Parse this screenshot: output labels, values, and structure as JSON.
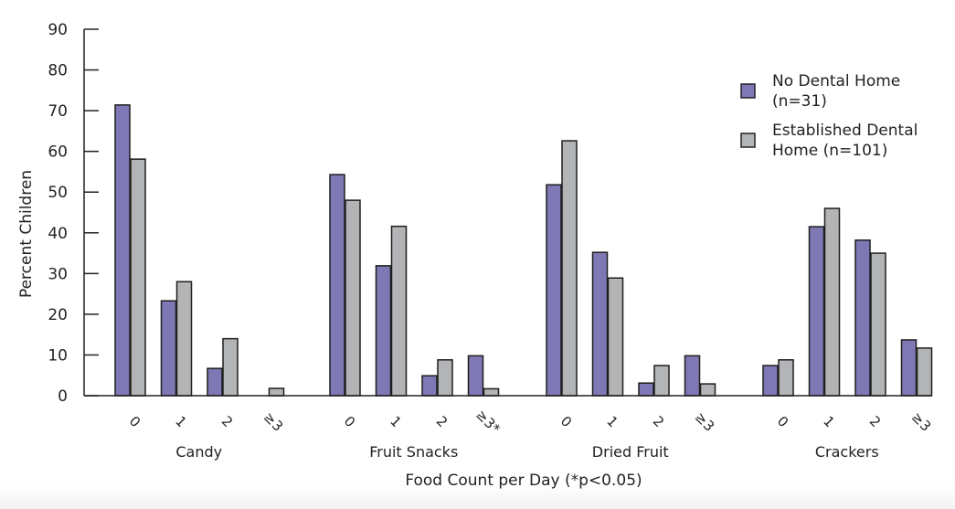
{
  "chart_data": {
    "type": "bar",
    "title": "",
    "xlabel": "Food Count per Day (*p<0.05)",
    "ylabel": "Percent Children",
    "ylim": [
      0,
      90
    ],
    "yticks": [
      "0",
      "10",
      "20",
      "30",
      "40",
      "50",
      "60",
      "70",
      "80",
      "90"
    ],
    "grid": false,
    "legend_position": "top-right",
    "groups": [
      {
        "name": "Candy",
        "categories": [
          "0",
          "1",
          "2",
          "≥3"
        ]
      },
      {
        "name": "Fruit Snacks",
        "categories": [
          "0",
          "1",
          "2",
          "≥3*"
        ]
      },
      {
        "name": "Dried Fruit",
        "categories": [
          "0",
          "1",
          "2",
          "≥3"
        ]
      },
      {
        "name": "Crackers",
        "categories": [
          "0",
          "1",
          "2",
          "≥3"
        ]
      }
    ],
    "series": [
      {
        "name": "No Dental Home (n=31)",
        "legend_lines": [
          "No Dental Home",
          "(n=31)"
        ],
        "color": "#7e78b4",
        "values": [
          71.4,
          23.3,
          6.7,
          0,
          54.3,
          31.9,
          4.9,
          9.8,
          51.8,
          35.2,
          3.1,
          9.8,
          7.4,
          41.5,
          38.2,
          13.7
        ]
      },
      {
        "name": "Established Dental Home (n=101)",
        "legend_lines": [
          "Established Dental",
          "Home (n=101)"
        ],
        "color": "#b3b4b6",
        "values": [
          58.1,
          28.0,
          14.0,
          1.8,
          48.0,
          41.6,
          8.8,
          1.7,
          62.6,
          28.9,
          7.4,
          2.9,
          8.8,
          46.0,
          35.0,
          11.7
        ]
      }
    ]
  }
}
